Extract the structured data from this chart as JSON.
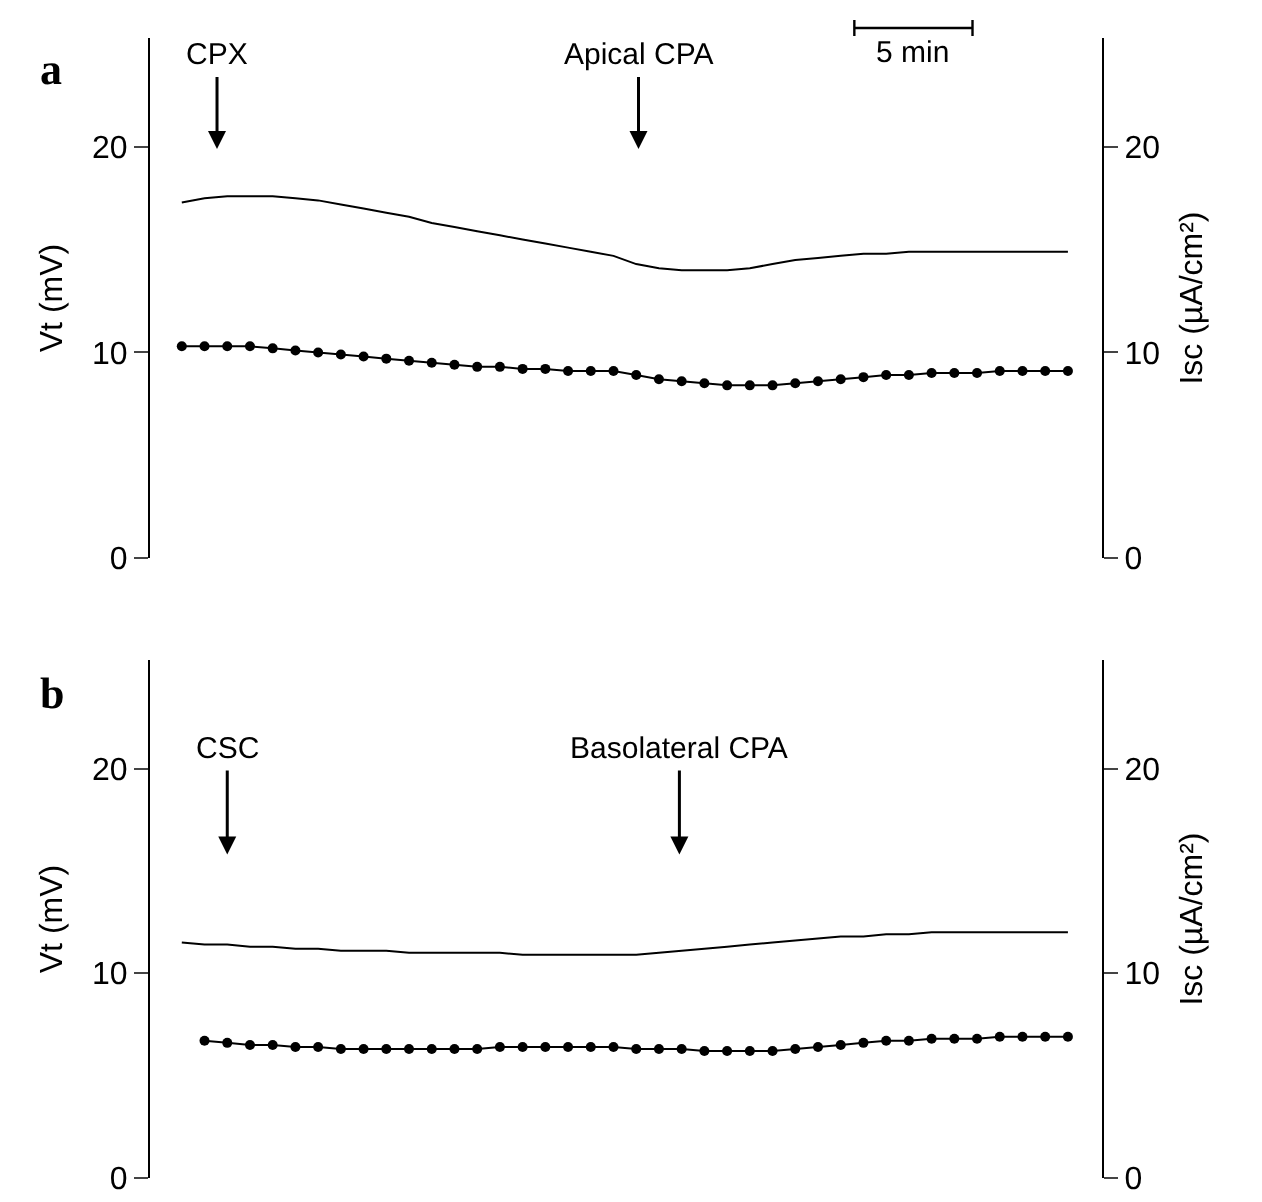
{
  "chart_data": [
    {
      "type": "line",
      "title": "a",
      "ylabel": "Vt (mV)",
      "y2label": "Isc (µA/cm²)",
      "categories": [
        null,
        null,
        null,
        null,
        null,
        null,
        null,
        null,
        null,
        null,
        null,
        null,
        null,
        null,
        null,
        null,
        null,
        null,
        null,
        null,
        null,
        null,
        null,
        null,
        null,
        null,
        null,
        null,
        null,
        null,
        null,
        null,
        null,
        null,
        null,
        null,
        null,
        null,
        null,
        null
      ],
      "series": [
        {
          "color": "#000000",
          "marker": "none",
          "values": [
            17.3,
            17.5,
            17.6,
            17.6,
            17.6,
            17.5,
            17.4,
            17.2,
            17.0,
            16.8,
            16.6,
            16.3,
            16.1,
            15.9,
            15.7,
            15.5,
            15.3,
            15.1,
            14.9,
            14.7,
            14.3,
            14.1,
            14.0,
            14.0,
            14.0,
            14.1,
            14.3,
            14.5,
            14.6,
            14.7,
            14.8,
            14.8,
            14.9,
            14.9,
            14.9,
            14.9,
            14.9,
            14.9,
            14.9,
            14.9
          ]
        },
        {
          "color": "#000000",
          "marker": "circle",
          "axis": "y2",
          "values": [
            10.3,
            10.3,
            10.3,
            10.3,
            10.2,
            10.1,
            10.0,
            9.9,
            9.8,
            9.7,
            9.6,
            9.5,
            9.4,
            9.3,
            9.3,
            9.2,
            9.2,
            9.1,
            9.1,
            9.1,
            8.9,
            8.7,
            8.6,
            8.5,
            8.4,
            8.4,
            8.4,
            8.5,
            8.6,
            8.7,
            8.8,
            8.9,
            8.9,
            9.0,
            9.0,
            9.0,
            9.1,
            9.1,
            9.1,
            9.1
          ]
        }
      ],
      "ylim": [
        0,
        25.3
      ],
      "yticks": [
        0,
        10,
        20
      ],
      "y2lim": [
        0,
        25.3
      ],
      "y2ticks": [
        0,
        10,
        20
      ],
      "annotations": [
        "CPX",
        "Apical CPA",
        "5 min"
      ],
      "tick_labels": "y"
    },
    {
      "type": "line",
      "title": "b",
      "ylabel": "Vt (mV)",
      "y2label": "Isc (µA/cm²)",
      "categories": [
        null,
        null,
        null,
        null,
        null,
        null,
        null,
        null,
        null,
        null,
        null,
        null,
        null,
        null,
        null,
        null,
        null,
        null,
        null,
        null,
        null,
        null,
        null,
        null,
        null,
        null,
        null,
        null,
        null,
        null,
        null,
        null,
        null,
        null,
        null,
        null,
        null,
        null,
        null,
        null
      ],
      "series": [
        {
          "color": "#000000",
          "marker": "none",
          "values": [
            11.5,
            11.4,
            11.4,
            11.3,
            11.3,
            11.2,
            11.2,
            11.1,
            11.1,
            11.1,
            11.0,
            11.0,
            11.0,
            11.0,
            11.0,
            10.9,
            10.9,
            10.9,
            10.9,
            10.9,
            10.9,
            11.0,
            11.1,
            11.2,
            11.3,
            11.4,
            11.5,
            11.6,
            11.7,
            11.8,
            11.8,
            11.9,
            11.9,
            12.0,
            12.0,
            12.0,
            12.0,
            12.0,
            12.0,
            12.0
          ]
        },
        {
          "color": "#000000",
          "marker": "circle",
          "axis": "y2",
          "values": [
            null,
            6.7,
            6.6,
            6.5,
            6.5,
            6.4,
            6.4,
            6.3,
            6.3,
            6.3,
            6.3,
            6.3,
            6.3,
            6.3,
            6.4,
            6.4,
            6.4,
            6.4,
            6.4,
            6.4,
            6.3,
            6.3,
            6.3,
            6.2,
            6.2,
            6.2,
            6.2,
            6.3,
            6.4,
            6.5,
            6.6,
            6.7,
            6.7,
            6.8,
            6.8,
            6.8,
            6.9,
            6.9,
            6.9,
            6.9
          ]
        }
      ],
      "ylim": [
        0,
        25.3
      ],
      "yticks": [
        0,
        10,
        20
      ],
      "y2lim": [
        0,
        25.3
      ],
      "y2ticks": [
        0,
        10,
        20
      ],
      "annotations": [
        "CSC",
        "Basolateral CPA"
      ],
      "tick_labels": "y"
    }
  ]
}
